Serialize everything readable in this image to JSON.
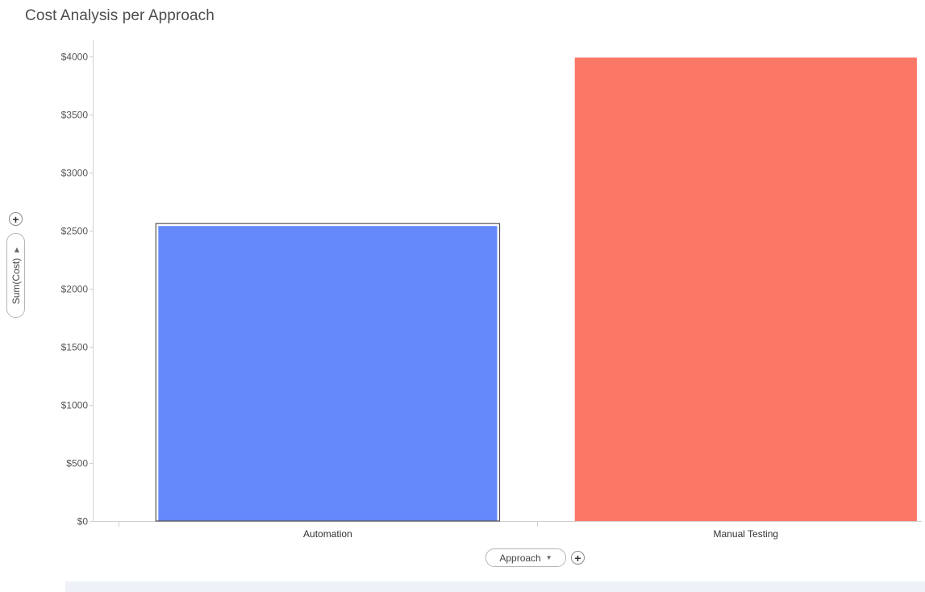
{
  "visualization": {
    "title": "Cost Analysis per Approach"
  },
  "y_axis_selector": {
    "label": "Sum(Cost)",
    "caret_icon": "caret-right-icon",
    "add_icon": "plus-icon"
  },
  "x_axis_selector": {
    "label": "Approach",
    "caret_icon": "caret-down-icon",
    "add_icon": "plus-icon"
  },
  "chart_data": {
    "type": "bar",
    "categories": [
      "Automation",
      "Manual Testing"
    ],
    "values": [
      2540,
      3990
    ],
    "colors": [
      "#6589fb",
      "#fb7866"
    ],
    "selected_category": "Automation",
    "ylim": [
      0,
      4000
    ],
    "yticks": [
      0,
      500,
      1000,
      1500,
      2000,
      2500,
      3000,
      3500,
      4000
    ],
    "ytick_labels": [
      "$0",
      "$500",
      "$1000",
      "$1500",
      "$2000",
      "$2500",
      "$3000",
      "$3500",
      "$4000"
    ],
    "xlabel": "Approach",
    "ylabel": "Sum(Cost)",
    "grid": false
  }
}
